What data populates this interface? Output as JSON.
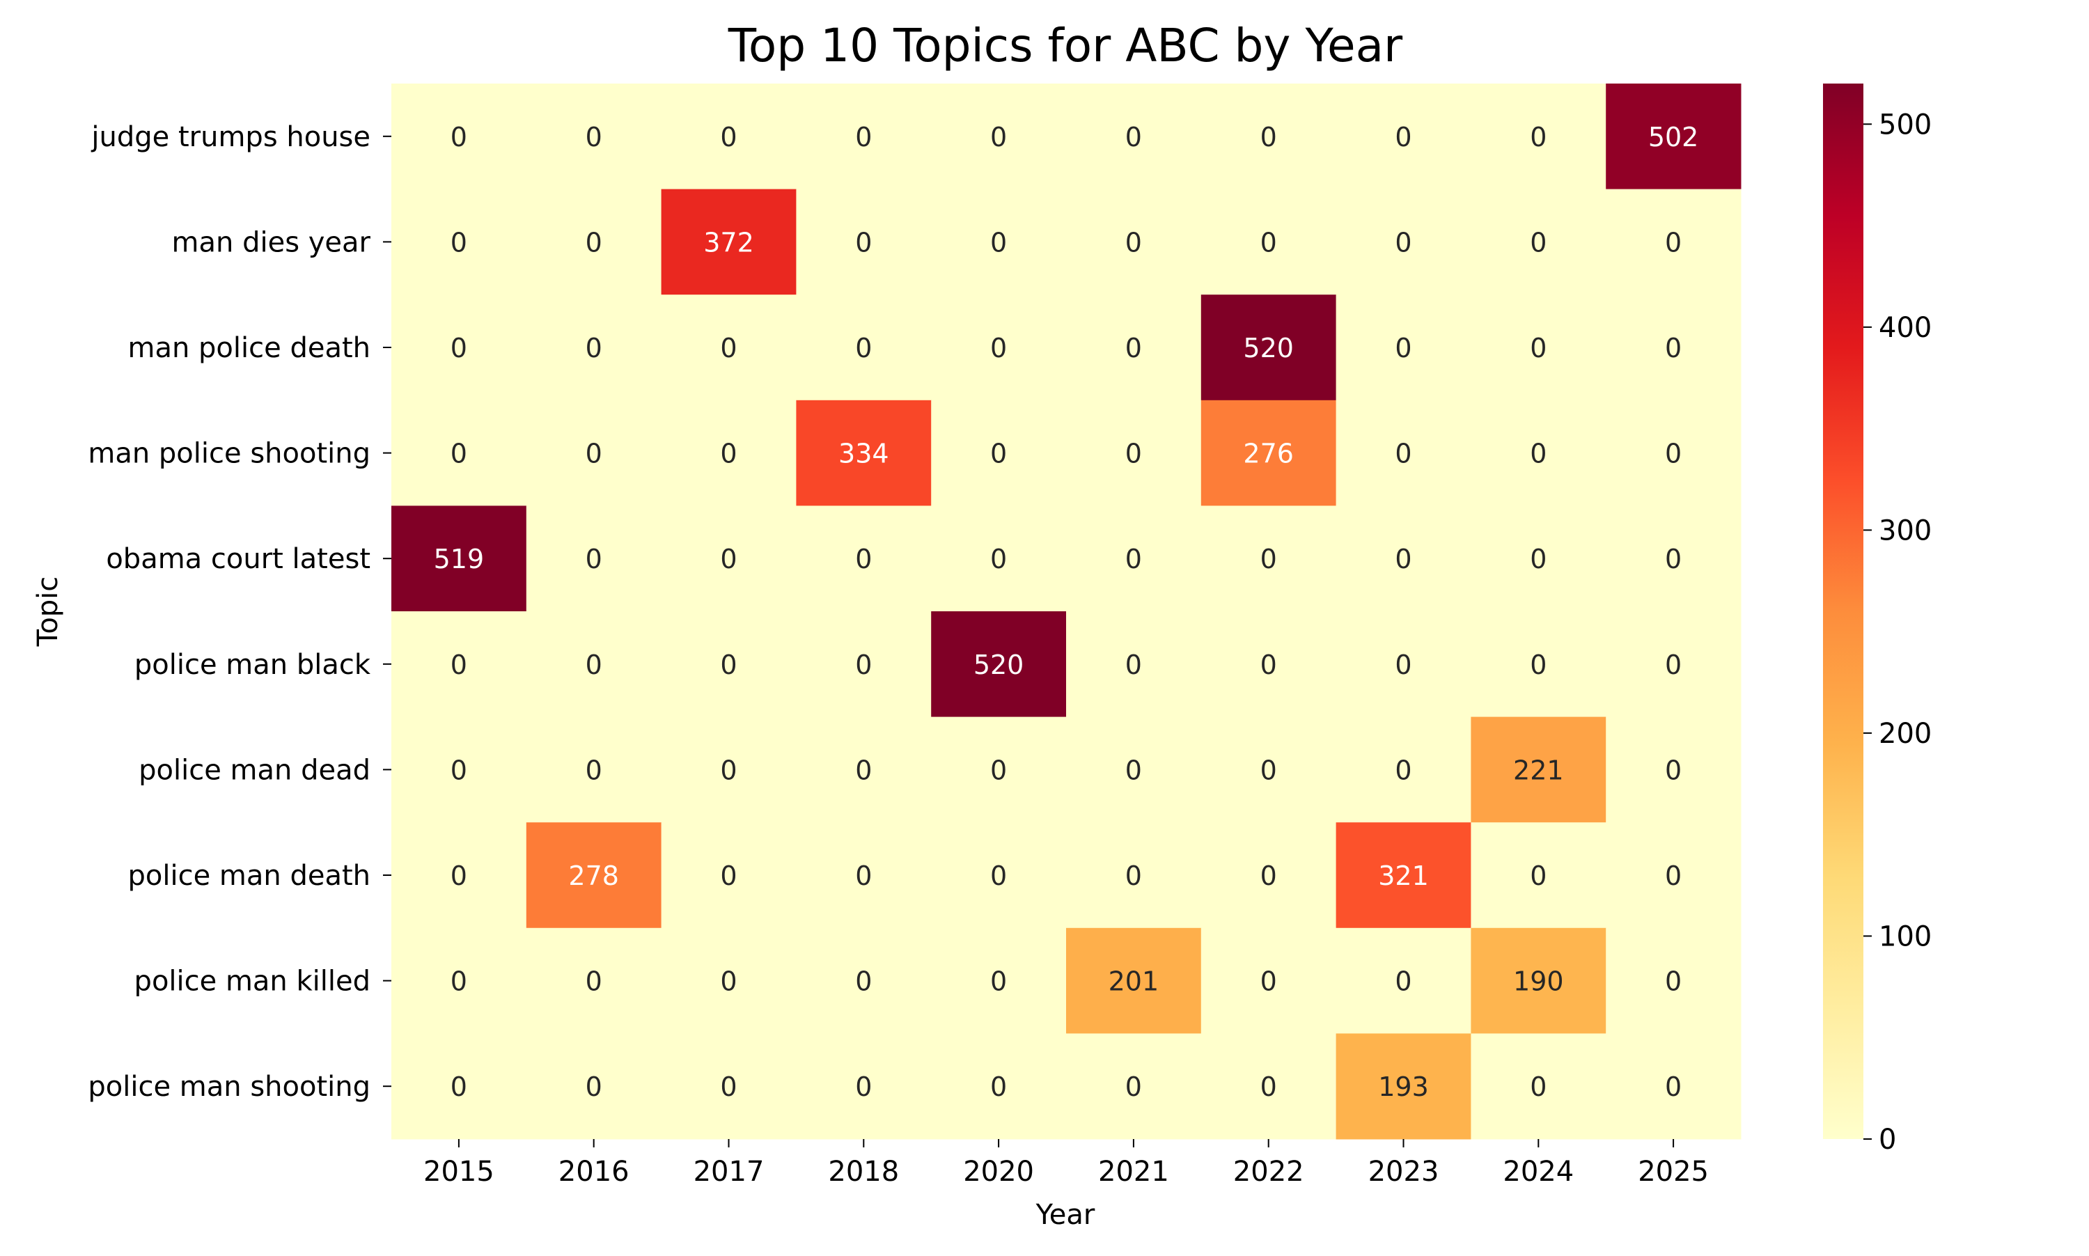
{
  "chart_data": {
    "type": "heatmap",
    "title": "Top 10 Topics for ABC by Year",
    "xlabel": "Year",
    "ylabel": "Topic",
    "x_categories": [
      "2015",
      "2016",
      "2017",
      "2018",
      "2020",
      "2021",
      "2022",
      "2023",
      "2024",
      "2025"
    ],
    "y_categories": [
      "judge trumps house",
      "man dies year",
      "man police death",
      "man police shooting",
      "obama court latest",
      "police man black",
      "police man dead",
      "police man death",
      "police man killed",
      "police man shooting"
    ],
    "values": [
      [
        0,
        0,
        0,
        0,
        0,
        0,
        0,
        0,
        0,
        502
      ],
      [
        0,
        0,
        372,
        0,
        0,
        0,
        0,
        0,
        0,
        0
      ],
      [
        0,
        0,
        0,
        0,
        0,
        0,
        520,
        0,
        0,
        0
      ],
      [
        0,
        0,
        0,
        334,
        0,
        0,
        276,
        0,
        0,
        0
      ],
      [
        519,
        0,
        0,
        0,
        0,
        0,
        0,
        0,
        0,
        0
      ],
      [
        0,
        0,
        0,
        0,
        520,
        0,
        0,
        0,
        0,
        0
      ],
      [
        0,
        0,
        0,
        0,
        0,
        0,
        0,
        0,
        221,
        0
      ],
      [
        0,
        278,
        0,
        0,
        0,
        0,
        0,
        321,
        0,
        0
      ],
      [
        0,
        0,
        0,
        0,
        0,
        201,
        0,
        0,
        190,
        0
      ],
      [
        0,
        0,
        0,
        0,
        0,
        0,
        0,
        193,
        0,
        0
      ]
    ],
    "colormap": "YlOrRd",
    "colorbar": {
      "range": [
        0,
        520
      ],
      "ticks": [
        0,
        100,
        200,
        300,
        400,
        500
      ]
    },
    "annotations": true
  }
}
